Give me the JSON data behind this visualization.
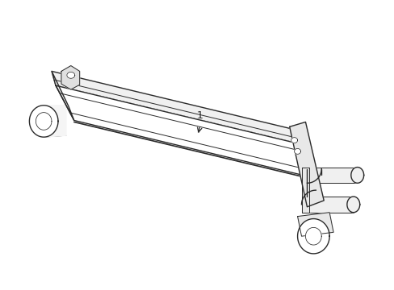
{
  "bg_color": "#ffffff",
  "line_color": "#2a2a2a",
  "label": "1"
}
